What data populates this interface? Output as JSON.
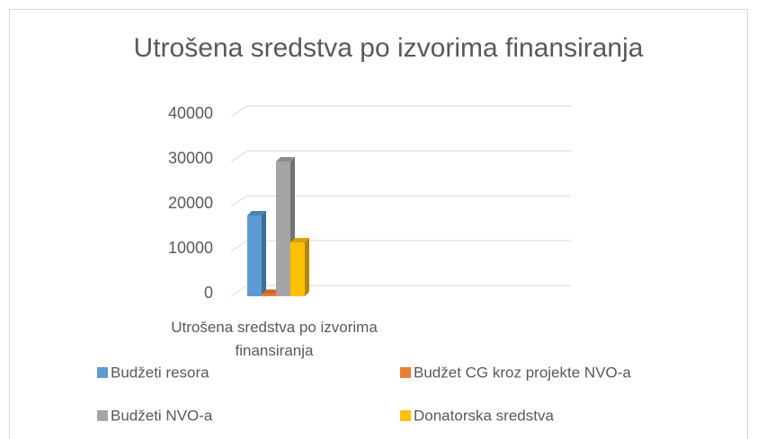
{
  "chart_data": {
    "type": "bar",
    "title": "Utrošena sredstva po izvorima finansiranja",
    "categories": [
      "Utrošena sredstva po izvorima finansiranja"
    ],
    "series": [
      {
        "name": "Budžeti resora",
        "color": "#5b9bd5",
        "values": [
          18000
        ]
      },
      {
        "name": "Budžet CG kroz projekte NVO-a",
        "color": "#ed7d31",
        "values": [
          500
        ]
      },
      {
        "name": "Budžeti NVO-a",
        "color": "#a5a5a5",
        "values": [
          30000
        ]
      },
      {
        "name": "Donatorska sredstva",
        "color": "#ffc000",
        "values": [
          12000
        ]
      }
    ],
    "ylim": [
      0,
      40000
    ],
    "yticks": [
      0,
      10000,
      20000,
      30000,
      40000
    ],
    "grid": true,
    "legend": "bottom"
  }
}
